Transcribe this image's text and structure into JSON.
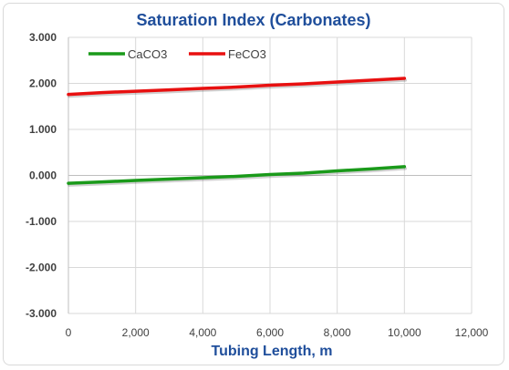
{
  "chart_data": {
    "type": "line",
    "title": "Saturation Index (Carbonates)",
    "xlabel": "Tubing Length, m",
    "ylabel": "",
    "xlim": [
      0,
      12000
    ],
    "ylim": [
      -3,
      3
    ],
    "x_ticks": [
      "0",
      "2,000",
      "4,000",
      "6,000",
      "8,000",
      "10,000",
      "12,000"
    ],
    "y_ticks": [
      "3.000",
      "2.000",
      "1.000",
      "0.000",
      "-1.000",
      "-2.000",
      "-3.000"
    ],
    "grid": true,
    "legend_position": "top-left",
    "series": [
      {
        "name": "CaCO3",
        "color": "#1a9a1a",
        "x": [
          0,
          1000,
          2000,
          3000,
          4000,
          5000,
          6000,
          7000,
          8000,
          9000,
          10000
        ],
        "values": [
          -0.17,
          -0.14,
          -0.11,
          -0.08,
          -0.05,
          -0.02,
          0.02,
          0.05,
          0.1,
          0.14,
          0.19
        ]
      },
      {
        "name": "FeCO3",
        "color": "#e81010",
        "x": [
          0,
          1000,
          2000,
          3000,
          4000,
          5000,
          6000,
          7000,
          8000,
          9000,
          10000
        ],
        "values": [
          1.76,
          1.8,
          1.83,
          1.86,
          1.89,
          1.92,
          1.96,
          1.99,
          2.03,
          2.07,
          2.11
        ]
      }
    ]
  }
}
